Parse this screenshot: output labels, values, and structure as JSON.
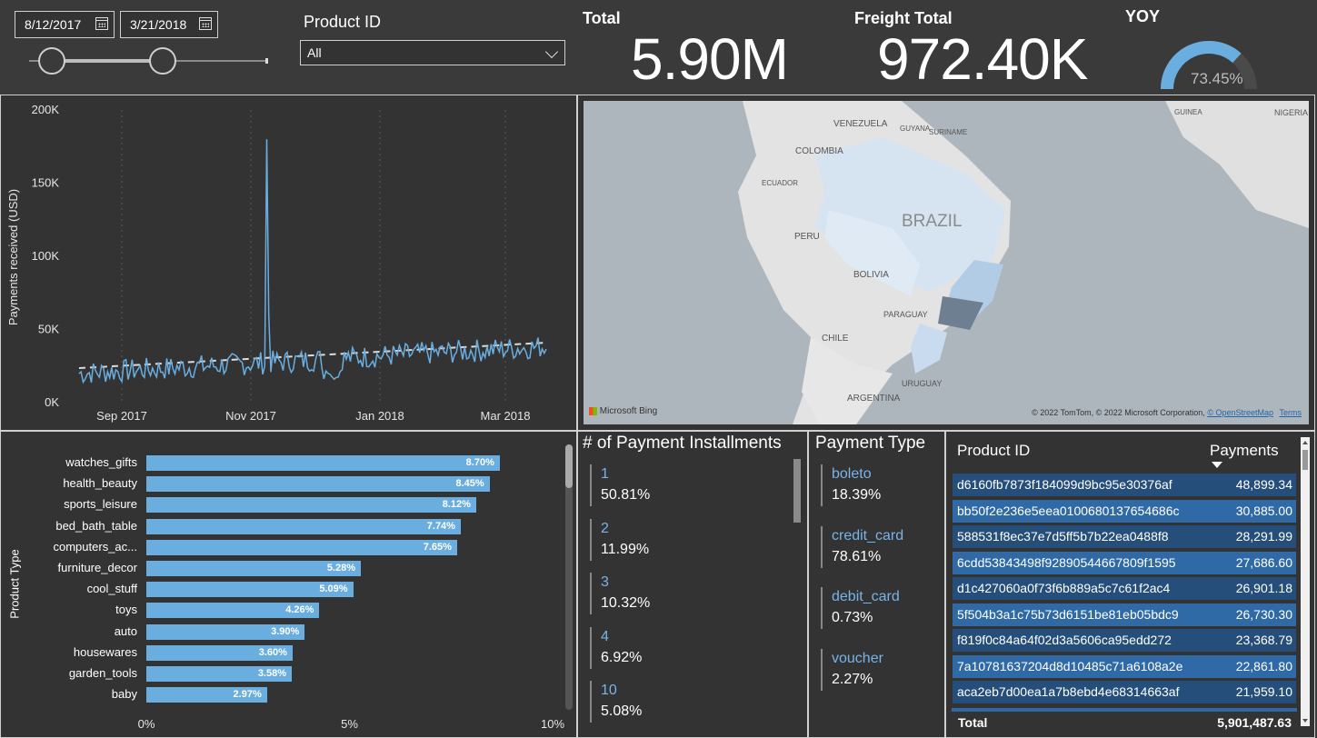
{
  "filters": {
    "start_date": "8/12/2017",
    "end_date": "3/21/2018",
    "product_id_label": "Product ID",
    "product_id_value": "All"
  },
  "kpis": {
    "total_label": "Total",
    "total_value": "5.90M",
    "freight_label": "Freight Total",
    "freight_value": "972.40K",
    "yoy_label": "YOY",
    "yoy_value": "73.45%",
    "yoy_fraction": 0.7345
  },
  "line_chart": {
    "ylabel": "Payments received (USD)",
    "y_ticks": [
      "0K",
      "50K",
      "100K",
      "150K",
      "200K"
    ],
    "x_ticks": [
      "Sep 2017",
      "Nov 2017",
      "Jan 2018",
      "Mar 2018"
    ],
    "line_color": "#6aaee0"
  },
  "map": {
    "country_labels": [
      "VENEZUELA",
      "COLOMBIA",
      "ECUADOR",
      "PERU",
      "BRAZIL",
      "BOLIVIA",
      "PARAGUAY",
      "CHILE",
      "ARGENTINA",
      "URUGUAY",
      "GUYANA",
      "SURINAME",
      "NIGERIA",
      "GUINEA"
    ],
    "attribution": "© 2022 TomTom, © 2022 Microsoft Corporation,",
    "osm_link": "© OpenStreetMap",
    "terms_link": "Terms",
    "bing_logo": "Microsoft Bing"
  },
  "bar_chart": {
    "ylabel": "Product Type",
    "x_ticks": [
      "0%",
      "5%",
      "10%"
    ],
    "categories": [
      "watches_gifts",
      "health_beauty",
      "sports_leisure",
      "bed_bath_table",
      "computers_ac...",
      "furniture_decor",
      "cool_stuff",
      "toys",
      "auto",
      "housewares",
      "garden_tools",
      "baby"
    ],
    "values": [
      8.7,
      8.45,
      8.12,
      7.74,
      7.65,
      5.28,
      5.09,
      4.26,
      3.9,
      3.6,
      3.58,
      2.97
    ],
    "labels": [
      "8.70%",
      "8.45%",
      "8.12%",
      "7.74%",
      "7.65%",
      "5.28%",
      "5.09%",
      "4.26%",
      "3.90%",
      "3.60%",
      "3.58%",
      "2.97%"
    ],
    "color": "#6aaee0"
  },
  "installments": {
    "title": "# of Payment Installments",
    "items": [
      {
        "key": "1",
        "value": "50.81%"
      },
      {
        "key": "2",
        "value": "11.99%"
      },
      {
        "key": "3",
        "value": "10.32%"
      },
      {
        "key": "4",
        "value": "6.92%"
      },
      {
        "key": "10",
        "value": "5.08%"
      }
    ]
  },
  "payment_type": {
    "title": "Payment Type",
    "items": [
      {
        "key": "boleto",
        "value": "18.39%"
      },
      {
        "key": "credit_card",
        "value": "78.61%"
      },
      {
        "key": "debit_card",
        "value": "0.73%"
      },
      {
        "key": "voucher",
        "value": "2.27%"
      }
    ]
  },
  "table": {
    "col_id": "Product ID",
    "col_payments": "Payments",
    "rows": [
      {
        "id": "d6160fb7873f184099d9bc95e30376af",
        "payments": "48,899.34"
      },
      {
        "id": "bb50f2e236e5eea0100680137654686c",
        "payments": "30,885.00"
      },
      {
        "id": "588531f8ec37e7d5ff5b7b22ea0488f8",
        "payments": "28,291.99"
      },
      {
        "id": "6cdd53843498f92890544667809f1595",
        "payments": "27,686.60"
      },
      {
        "id": "d1c427060a0f73f6b889a5c7c61f2ac4",
        "payments": "26,901.18"
      },
      {
        "id": "5f504b3a1c75b73d6151be81eb05bdc9",
        "payments": "26,730.30"
      },
      {
        "id": "f819f0c84a64f02d3a5606ca95edd272",
        "payments": "23,368.79"
      },
      {
        "id": "7a10781637204d8d10485c71a6108a2e",
        "payments": "22,861.80"
      },
      {
        "id": "aca2eb7d00ea1a7b8ebd4e68314663af",
        "payments": "21,959.10"
      }
    ],
    "total_label": "Total",
    "total_value": "5,901,487.63"
  },
  "chart_data": {
    "type": "bar",
    "categories": [
      "watches_gifts",
      "health_beauty",
      "sports_leisure",
      "bed_bath_table",
      "computers_ac...",
      "furniture_decor",
      "cool_stuff",
      "toys",
      "auto",
      "housewares",
      "garden_tools",
      "baby"
    ],
    "values": [
      8.7,
      8.45,
      8.12,
      7.74,
      7.65,
      5.28,
      5.09,
      4.26,
      3.9,
      3.6,
      3.58,
      2.97
    ],
    "xlabel": "",
    "ylabel": "Product Type",
    "xlim": [
      0,
      10
    ]
  }
}
